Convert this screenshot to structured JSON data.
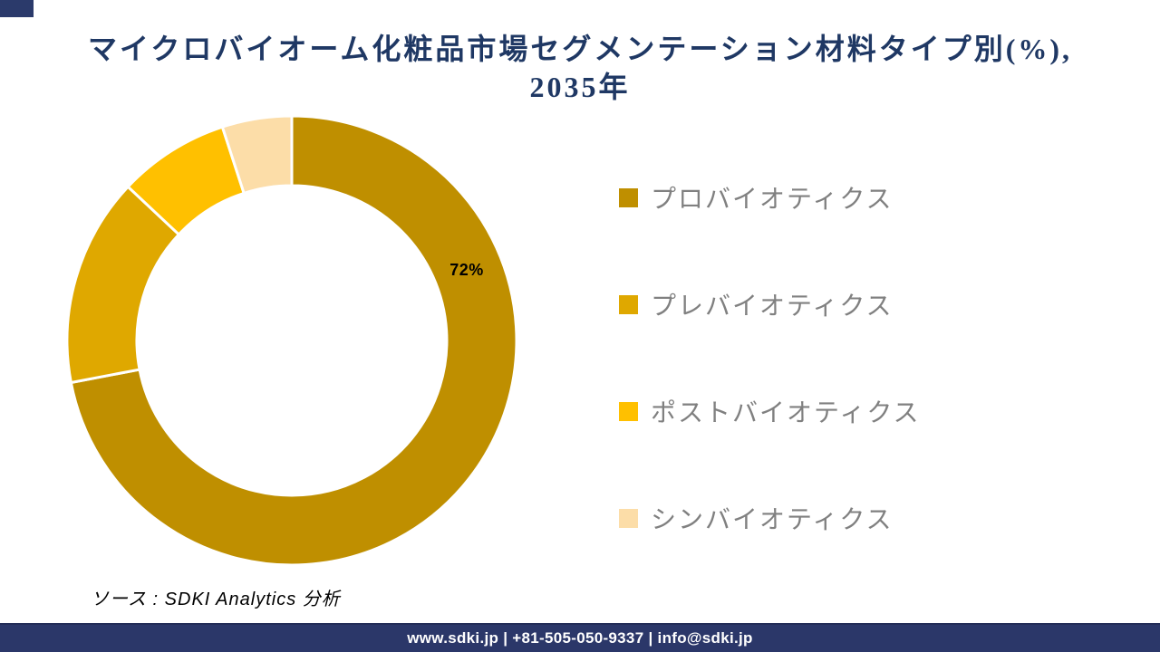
{
  "page": {
    "background": "#FFFFFF",
    "accent_navy": "#2B3769"
  },
  "title": {
    "line1": "マイクロバイオーム化粧品市場セグメンテーション材料タイプ別(%),",
    "line2": "2035年",
    "color": "#1F3864"
  },
  "chart_data": {
    "type": "pie",
    "subtype": "donut",
    "title": "マイクロバイオーム化粧品市場セグメンテーション材料タイプ別(%), 2035年",
    "categories": [
      "プロバイオティクス",
      "プレバイオティクス",
      "ポストバイオティクス",
      "シンバイオティクス"
    ],
    "values": [
      72,
      15,
      8,
      5
    ],
    "unit": "%",
    "colors": [
      "#BF8F00",
      "#DFA800",
      "#FFC000",
      "#FCDDA8"
    ],
    "data_labels": [
      "72%",
      "",
      "",
      ""
    ],
    "start_angle_deg": 0,
    "direction": "clockwise",
    "donut_hole_ratio": 0.69,
    "separator_color": "#FFFFFF",
    "legend_position": "right",
    "grid": false
  },
  "legend": {
    "text_color": "#808080",
    "items": [
      {
        "label": "プロバイオティクス",
        "color": "#BF8F00"
      },
      {
        "label": "プレバイオティクス",
        "color": "#DFA800"
      },
      {
        "label": "ポストバイオティクス",
        "color": "#FFC000"
      },
      {
        "label": "シンバイオティクス",
        "color": "#FCDDA8"
      }
    ]
  },
  "source": {
    "text": "ソース : SDKI Analytics 分析"
  },
  "footer": {
    "text": "www.sdki.jp | +81-505-050-9337 | info@sdki.jp",
    "background": "#2B3769",
    "text_color": "#FFFFFF"
  }
}
